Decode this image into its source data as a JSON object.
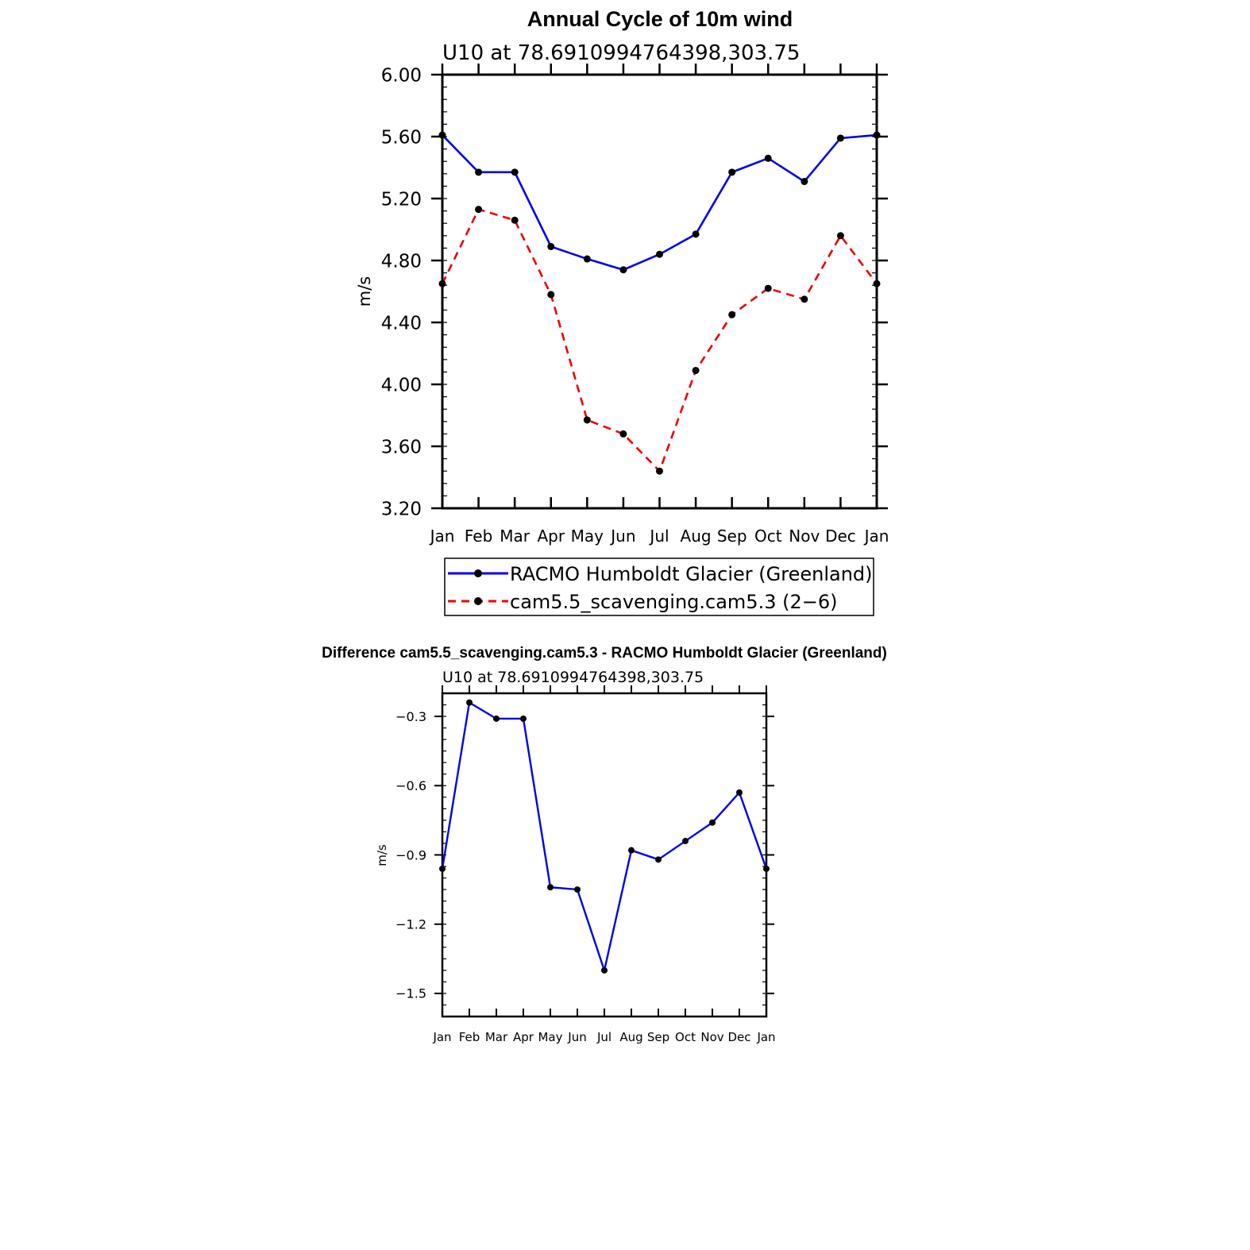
{
  "chart_data": [
    {
      "type": "line",
      "title": "Annual Cycle of 10m wind",
      "subtitle": "U10  at  78.6910994764398,303.75",
      "xlabel": "",
      "ylabel": "m/s",
      "categories": [
        "Jan",
        "Feb",
        "Mar",
        "Apr",
        "May",
        "Jun",
        "Jul",
        "Aug",
        "Sep",
        "Oct",
        "Nov",
        "Dec",
        "Jan"
      ],
      "ylim": [
        3.2,
        6.0
      ],
      "yticks": [
        "3.20",
        "3.60",
        "4.00",
        "4.40",
        "4.80",
        "5.20",
        "5.60",
        "6.00"
      ],
      "legend_position": "bottom",
      "series": [
        {
          "name": "RACMO Humboldt Glacier (Greenland)",
          "color": "#0000ee",
          "dash": "solid",
          "values": [
            5.61,
            5.37,
            5.37,
            4.89,
            4.81,
            4.74,
            4.84,
            4.97,
            5.37,
            5.46,
            5.31,
            5.59,
            5.61
          ]
        },
        {
          "name": "cam5.5_scavenging.cam5.3 (2−6)",
          "color": "#ee0000",
          "dash": "dashed",
          "values": [
            4.65,
            5.13,
            5.06,
            4.58,
            3.77,
            3.68,
            3.44,
            4.09,
            4.45,
            4.62,
            4.55,
            4.96,
            4.65
          ]
        }
      ]
    },
    {
      "type": "line",
      "title": "Difference cam5.5_scavenging.cam5.3 - RACMO Humboldt Glacier (Greenland)",
      "subtitle": "U10  at  78.6910994764398,303.75",
      "xlabel": "",
      "ylabel": "m/s",
      "categories": [
        "Jan",
        "Feb",
        "Mar",
        "Apr",
        "May",
        "Jun",
        "Jul",
        "Aug",
        "Sep",
        "Oct",
        "Nov",
        "Dec",
        "Jan"
      ],
      "ylim": [
        -1.6,
        -0.2
      ],
      "yticks": [
        "−1.5",
        "−1.2",
        "−0.9",
        "−0.6",
        "−0.3"
      ],
      "series": [
        {
          "name": "Difference",
          "color": "#0000ee",
          "dash": "solid",
          "values": [
            -0.96,
            -0.24,
            -0.31,
            -0.31,
            -1.04,
            -1.05,
            -1.4,
            -0.88,
            -0.92,
            -0.84,
            -0.76,
            -0.63,
            -0.96
          ]
        }
      ]
    }
  ]
}
